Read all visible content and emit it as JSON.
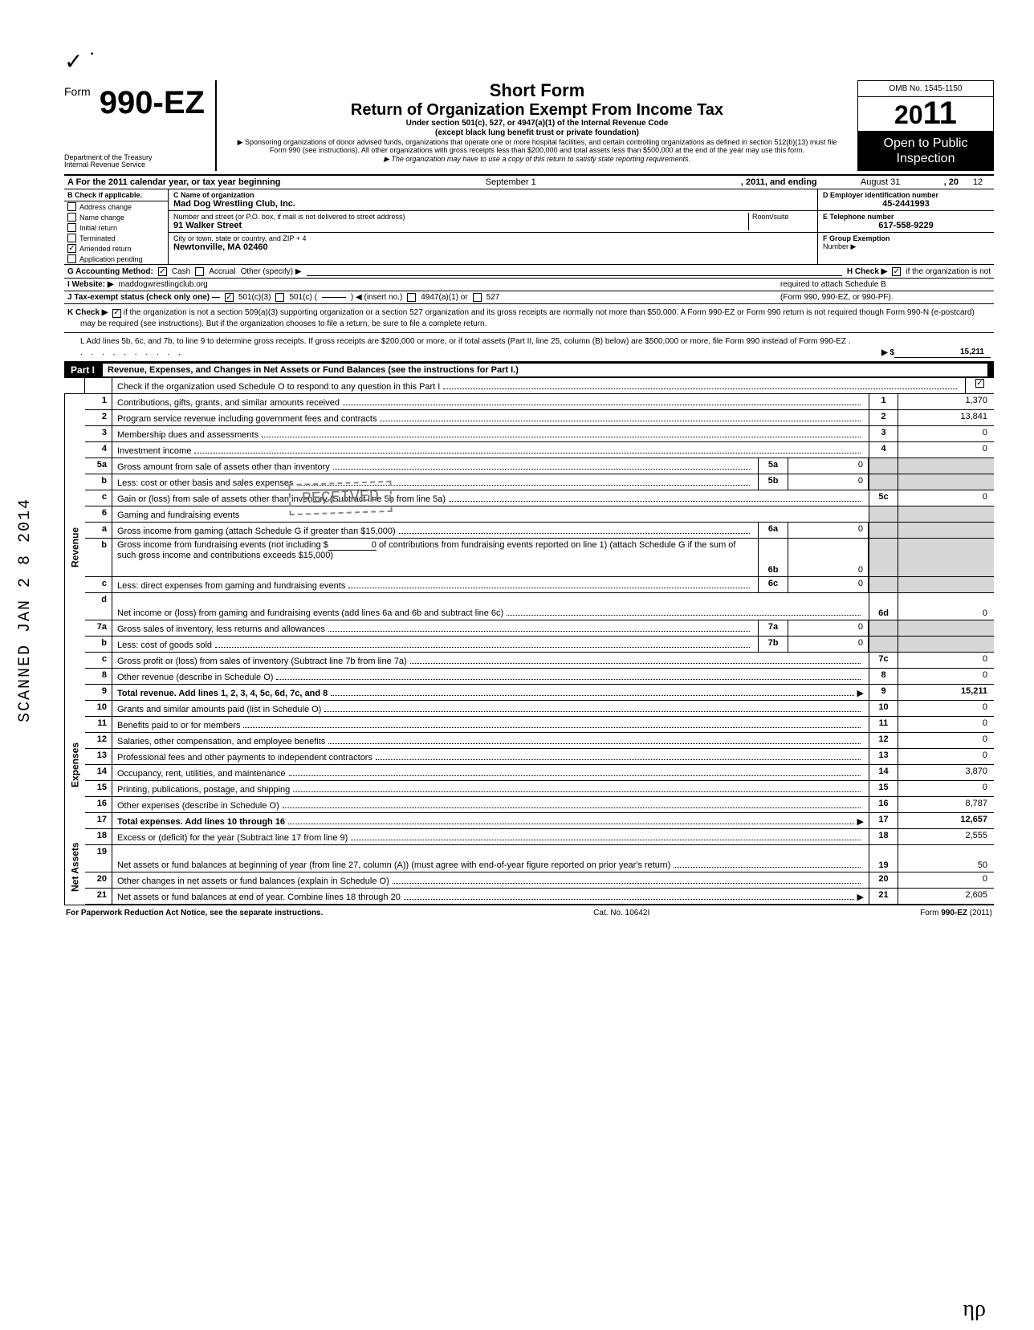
{
  "header": {
    "form_prefix": "Form",
    "form_number": "990-EZ",
    "dept": "Department of the Treasury\nInternal Revenue Service",
    "short_form": "Short Form",
    "title": "Return of Organization Exempt From Income Tax",
    "under": "Under section 501(c), 527, or 4947(a)(1) of the Internal Revenue Code\n(except black lung benefit trust or private foundation)",
    "sponsor": "▶ Sponsoring organizations of donor advised funds, organizations that operate one or more hospital facilities, and certain controlling organizations as defined in section 512(b)(13) must file Form 990 (see instructions). All other organizations with gross receipts less than $200,000 and total assets less than $500,000 at the end of the year may use this form.",
    "copy_note": "▶ The organization may have to use a copy of this return to satisfy state reporting requirements.",
    "omb": "OMB No. 1545-1150",
    "year_prefix": "20",
    "year_suffix": "11",
    "open_public": "Open to Public Inspection"
  },
  "lineA": {
    "text": "A  For the 2011 calendar year, or tax year beginning",
    "begin": "September 1",
    "mid": ", 2011, and ending",
    "end_month": "August 31",
    "end_yr_lbl": ", 20",
    "end_yr": "12"
  },
  "blockB": {
    "hdr": "B  Check if applicable.",
    "items": [
      {
        "label": "Address change",
        "checked": false
      },
      {
        "label": "Name change",
        "checked": false
      },
      {
        "label": "Initial return",
        "checked": false
      },
      {
        "label": "Terminated",
        "checked": false
      },
      {
        "label": "Amended return",
        "checked": true
      },
      {
        "label": "Application pending",
        "checked": false
      }
    ],
    "c_label": "C  Name of organization",
    "c_value": "Mad Dog Wrestling Club, Inc.",
    "addr_label": "Number and street (or P.O. box, if mail is not delivered to street address)",
    "room_label": "Room/suite",
    "addr_value": "91 Walker Street",
    "city_label": "City or town, state or country, and ZIP + 4",
    "city_value": "Newtonville, MA  02460",
    "d_label": "D Employer identification number",
    "d_value": "45-2441993",
    "e_label": "E  Telephone number",
    "e_value": "617-558-9229",
    "f_label": "F  Group Exemption",
    "f_label2": "Number ▶"
  },
  "rowG": {
    "g": "G  Accounting Method:",
    "cash": "Cash",
    "cash_checked": true,
    "accrual": "Accrual",
    "accrual_checked": false,
    "other": "Other (specify) ▶",
    "h": "H  Check ▶",
    "h_checked": true,
    "h_text": "if the organization is not"
  },
  "rowI": {
    "i": "I   Website: ▶",
    "site": "maddogwrestlingclub.org",
    "h_cont": "required to attach Schedule B"
  },
  "rowJ": {
    "j": "J  Tax-exempt status (check only one) —",
    "c3": "501(c)(3)",
    "c3_checked": true,
    "c": "501(c) (",
    "insert": ") ◀ (insert no.)",
    "a1": "4947(a)(1) or",
    "a1_checked": false,
    "s527": "527",
    "s527_checked": false,
    "pf": "(Form 990, 990-EZ, or 990-PF)."
  },
  "kText": "if the organization is not a section 509(a)(3) supporting organization or a section 527 organization and its gross receipts are normally not more than $50,000. A Form 990-EZ or Form 990 return is not required though Form 990-N (e-postcard) may be required (see instructions). But if the organization chooses to file a return, be sure to file a complete return.",
  "kLabel": "K  Check ▶",
  "kChecked": true,
  "lText": "L  Add lines 5b, 6c, and 7b, to line 9 to determine gross receipts. If gross receipts are $200,000 or more, or if total assets (Part II, line 25, column (B) below) are $500,000 or more, file Form 990 instead of Form 990-EZ",
  "lArrow": "▶  $",
  "lValue": "15,211",
  "part1": {
    "label": "Part I",
    "title": "Revenue, Expenses, and Changes in Net Assets or Fund Balances (see the instructions for Part I.)",
    "check_line": "Check if the organization used Schedule O to respond to any question in this Part I",
    "check_checked": true
  },
  "revenue_label": "Revenue",
  "expenses_label": "Expenses",
  "netassets_label": "Net Assets",
  "lines": {
    "r1": {
      "n": "1",
      "d": "Contributions, gifts, grants, and similar amounts received",
      "rn": "1",
      "v": "1,370"
    },
    "r2": {
      "n": "2",
      "d": "Program service revenue including government fees and contracts",
      "rn": "2",
      "v": "13,841"
    },
    "r3": {
      "n": "3",
      "d": "Membership dues and assessments",
      "rn": "3",
      "v": "0"
    },
    "r4": {
      "n": "4",
      "d": "Investment income",
      "rn": "4",
      "v": "0"
    },
    "r5a": {
      "n": "5a",
      "d": "Gross amount from sale of assets other than inventory",
      "mn": "5a",
      "mv": "0"
    },
    "r5b": {
      "n": "b",
      "d": "Less: cost or other basis and sales expenses",
      "mn": "5b",
      "mv": "0"
    },
    "r5c": {
      "n": "c",
      "d": "Gain or (loss) from sale of assets other than inventory (Subtract line 5b from line 5a)",
      "rn": "5c",
      "v": "0"
    },
    "r6": {
      "n": "6",
      "d": "Gaming and fundraising events"
    },
    "r6a": {
      "n": "a",
      "d": "Gross income from gaming (attach Schedule G if greater than $15,000)",
      "mn": "6a",
      "mv": "0"
    },
    "r6b": {
      "n": "b",
      "d": "Gross income from fundraising events (not including $",
      "d2": "of contributions from fundraising events reported on line 1) (attach Schedule G if the sum of such gross income and contributions exceeds $15,000)",
      "mn": "6b",
      "mv": "0",
      "blank": "0"
    },
    "r6c": {
      "n": "c",
      "d": "Less: direct expenses from gaming and fundraising events",
      "mn": "6c",
      "mv": "0"
    },
    "r6d": {
      "n": "d",
      "d": "Net income or (loss) from gaming and fundraising events (add lines 6a and 6b and subtract line 6c)",
      "rn": "6d",
      "v": "0"
    },
    "r7a": {
      "n": "7a",
      "d": "Gross sales of inventory, less returns and allowances",
      "mn": "7a",
      "mv": "0"
    },
    "r7b": {
      "n": "b",
      "d": "Less: cost of goods sold",
      "mn": "7b",
      "mv": "0"
    },
    "r7c": {
      "n": "c",
      "d": "Gross profit or (loss) from sales of inventory (Subtract line 7b from line 7a)",
      "rn": "7c",
      "v": "0"
    },
    "r8": {
      "n": "8",
      "d": "Other revenue (describe in Schedule O)",
      "rn": "8",
      "v": "0"
    },
    "r9": {
      "n": "9",
      "d": "Total revenue. Add lines 1, 2, 3, 4, 5c, 6d, 7c, and 8",
      "rn": "9",
      "v": "15,211",
      "bold": true,
      "arrow": true
    },
    "r10": {
      "n": "10",
      "d": "Grants and similar amounts paid (list in Schedule O)",
      "rn": "10",
      "v": "0"
    },
    "r11": {
      "n": "11",
      "d": "Benefits paid to or for members",
      "rn": "11",
      "v": "0"
    },
    "r12": {
      "n": "12",
      "d": "Salaries, other compensation, and employee benefits",
      "rn": "12",
      "v": "0"
    },
    "r13": {
      "n": "13",
      "d": "Professional fees and other payments to independent contractors",
      "rn": "13",
      "v": "0"
    },
    "r14": {
      "n": "14",
      "d": "Occupancy, rent, utilities, and maintenance",
      "rn": "14",
      "v": "3,870"
    },
    "r15": {
      "n": "15",
      "d": "Printing, publications, postage, and shipping",
      "rn": "15",
      "v": "0"
    },
    "r16": {
      "n": "16",
      "d": "Other expenses (describe in Schedule O)",
      "rn": "16",
      "v": "8,787"
    },
    "r17": {
      "n": "17",
      "d": "Total expenses. Add lines 10 through 16",
      "rn": "17",
      "v": "12,657",
      "bold": true,
      "arrow": true
    },
    "r18": {
      "n": "18",
      "d": "Excess or (deficit) for the year (Subtract line 17 from line 9)",
      "rn": "18",
      "v": "2,555"
    },
    "r19": {
      "n": "19",
      "d": "Net assets or fund balances at beginning of year (from line 27, column (A)) (must agree with end-of-year figure reported on prior year's return)",
      "rn": "19",
      "v": "50"
    },
    "r20": {
      "n": "20",
      "d": "Other changes in net assets or fund balances (explain in Schedule O)",
      "rn": "20",
      "v": "0"
    },
    "r21": {
      "n": "21",
      "d": "Net assets or fund balances at end of year. Combine lines 18 through 20",
      "rn": "21",
      "v": "2,605",
      "arrow": true
    }
  },
  "footer": {
    "left": "For Paperwork Reduction Act Notice, see the separate instructions.",
    "mid": "Cat. No. 10642I",
    "right": "Form 990-EZ (2011)"
  },
  "scanned": "SCANNED JAN 2 8 2014",
  "received": "RECEIVED",
  "np_mark": "ηρ"
}
